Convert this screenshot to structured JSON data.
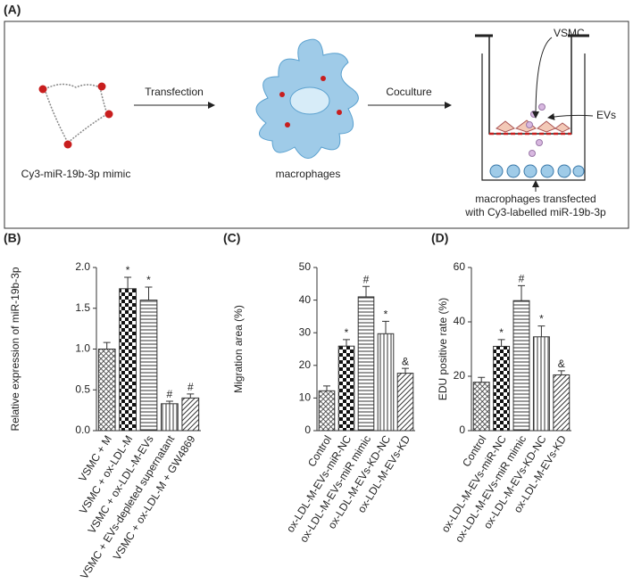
{
  "diagram": {
    "label": "(A)",
    "mimic_label": "Cy3-miR-19b-3p mimic",
    "step1": "Transfection",
    "cell_label": "macrophages",
    "step2": "Coculture",
    "vsmc": "VSMC",
    "evs": "EVs",
    "bottom_label_1": "macrophages transfected",
    "bottom_label_2": "with Cy3-labelled miR-19b-3p"
  },
  "chart_data": [
    {
      "type": "bar",
      "label": "(B)",
      "y_label": "Relative expression of miR-19b-3p",
      "categories": [
        "VSMC + M",
        "VSMC + ox-LDL-M",
        "VSMC + ox-LDL-M-EVs",
        "VSMC + EVs-depleted supernatant",
        "VSMC + ox-LDL-M + GW4869"
      ],
      "values": [
        1.0,
        1.74,
        1.6,
        0.33,
        0.4
      ],
      "errors": [
        0.08,
        0.14,
        0.16,
        0.03,
        0.05
      ],
      "annotations": [
        null,
        "*",
        "*",
        "#",
        "#"
      ],
      "patterns": [
        "crosshatch",
        "checker",
        "hlines",
        "vlines",
        "diagonal"
      ],
      "ylim": [
        0,
        2
      ],
      "yticks": [
        {
          "value": 0,
          "label": "0.0"
        },
        0.5,
        {
          "value": 1,
          "label": "1.0"
        },
        1.5,
        {
          "value": 2,
          "label": "2.0"
        }
      ]
    },
    {
      "type": "bar",
      "label": "(C)",
      "y_label": "Migration area (%)",
      "categories": [
        "Control",
        "ox-LDL-M-EVs-miR-NC",
        "ox-LDL-M-EVs-miR mimic",
        "ox-LDL-M-EVs-KD-NC",
        "ox-LDL-M-EVs-KD"
      ],
      "values": [
        12.2,
        25.9,
        41.0,
        29.7,
        17.6
      ],
      "errors": [
        1.5,
        2.0,
        3.2,
        3.8,
        1.5
      ],
      "annotations": [
        null,
        "*",
        "#",
        "*",
        "&"
      ],
      "patterns": [
        "crosshatch",
        "checker",
        "hlines",
        "vlines",
        "diagonal"
      ],
      "ylim": [
        0,
        50
      ],
      "yticks": [
        0,
        10,
        20,
        30,
        40,
        50
      ]
    },
    {
      "type": "bar",
      "label": "(D)",
      "y_label": "EDU positive rate (%)",
      "categories": [
        "Control",
        "ox-LDL-M-EVs-miR-NC",
        "ox-LDL-M-EVs-miR mimic",
        "ox-LDL-M-EVs-KD-NC",
        "ox-LDL-M-EVs-KD"
      ],
      "values": [
        17.8,
        31.0,
        47.8,
        34.5,
        20.5
      ],
      "errors": [
        1.8,
        2.5,
        5.5,
        4.0,
        1.5
      ],
      "annotations": [
        null,
        "*",
        "#",
        "*",
        "&"
      ],
      "patterns": [
        "crosshatch",
        "checker",
        "hlines",
        "vlines",
        "diagonal"
      ],
      "ylim": [
        0,
        60
      ],
      "yticks": [
        0,
        20,
        40,
        60
      ]
    }
  ]
}
